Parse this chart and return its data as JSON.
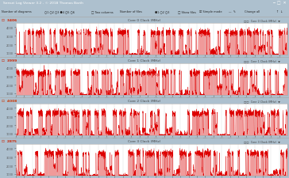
{
  "title_bar": "Sensei Log Viewer 3.2 - © 2018 Thomas Barth",
  "toolbar_bg": "#dde8f0",
  "fig_bg": "#adc0ce",
  "panel_bg": "#f0f4f8",
  "panel_plot_bg": "#ffffff",
  "num_panels": 4,
  "panel_titles": [
    "Core 0 Clock (MHz)",
    "Core 1 Clock (MHz)",
    "Core 2 Clock (MHz)",
    "Core 3 Clock (MHz)"
  ],
  "panel_labels": [
    "3406",
    "3999",
    "4008",
    "2875"
  ],
  "panel_label_colors": [
    "#cc2200",
    "#cc2200",
    "#cc3300",
    "#cc2200"
  ],
  "ylim": [
    800,
    4500
  ],
  "yticks": [
    1000,
    2000,
    3000,
    4000
  ],
  "xlim": [
    0,
    3300
  ],
  "line_color": "#dd0000",
  "fill_color": "#ee8888",
  "fill_base": 800,
  "grid_color": "#cccccc",
  "panel_header_bg": "#e4edf5",
  "text_color": "#444444",
  "titlebar_bg": "#5b7fa6",
  "titlebar_text": "#ffffff",
  "toolbar_text": "#222222"
}
